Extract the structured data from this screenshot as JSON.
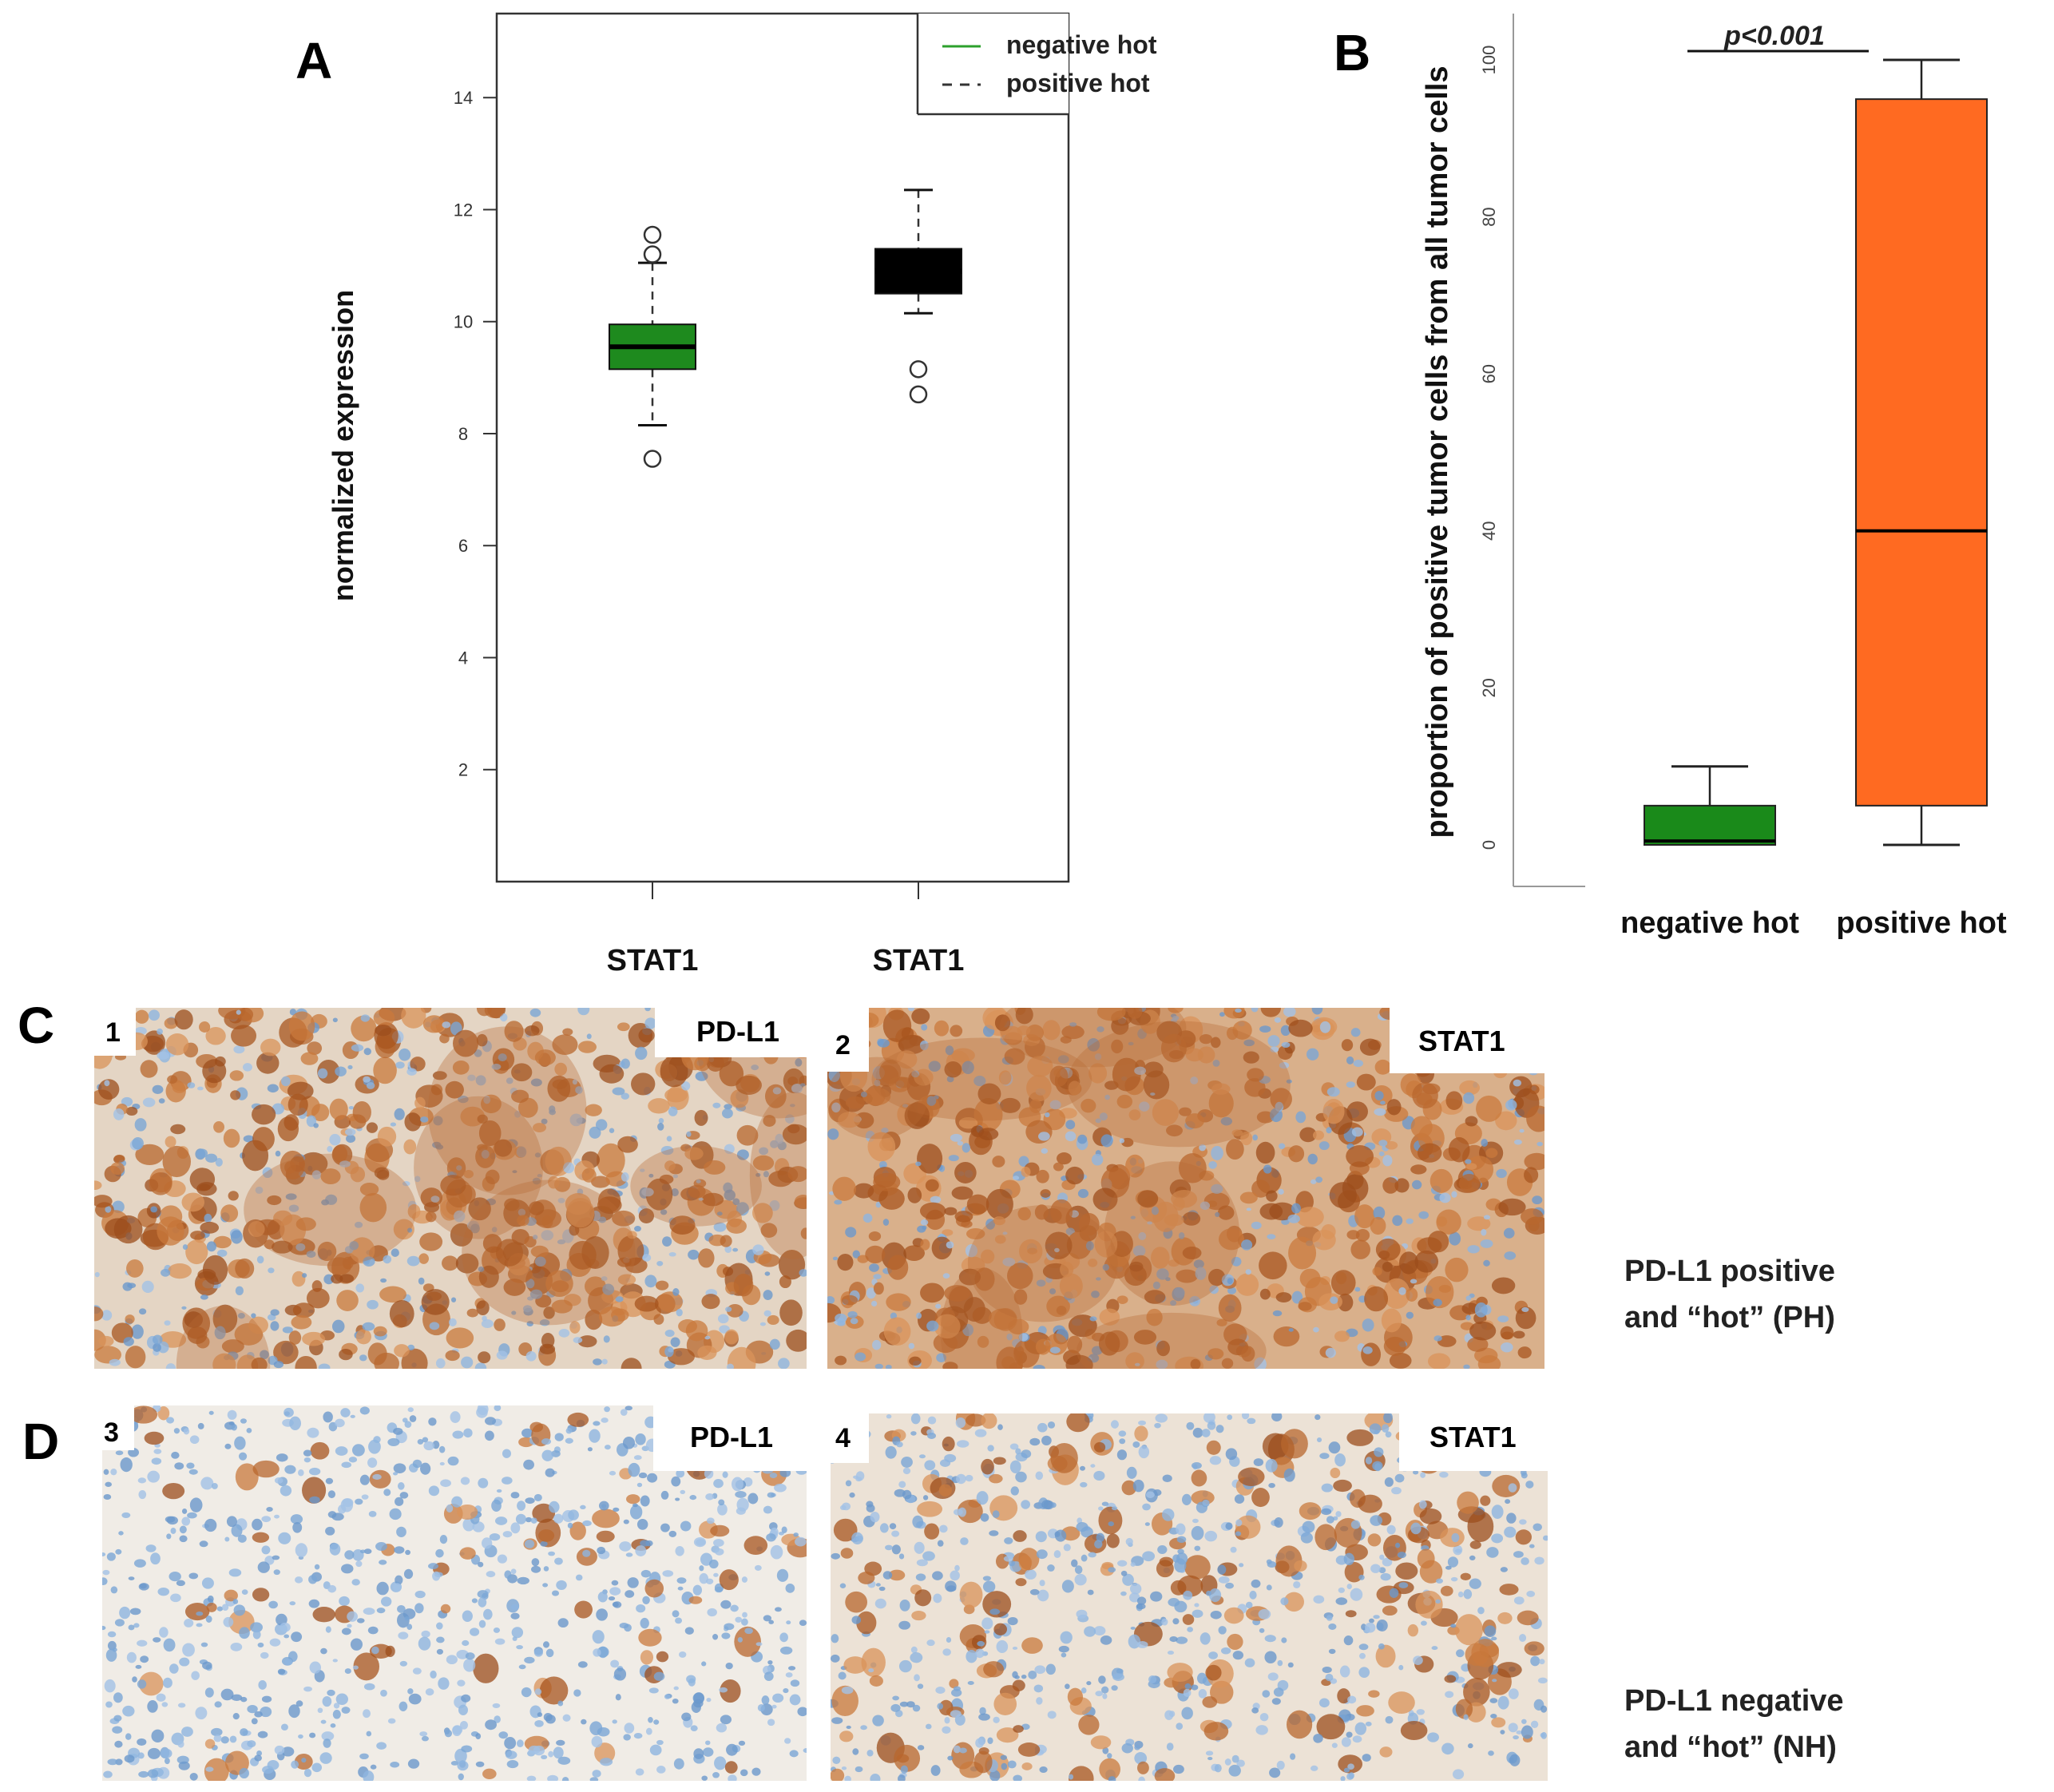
{
  "chart_data": [
    {
      "panel": "A",
      "type": "box",
      "ylabel": "normalized expression",
      "xlabel": "",
      "ylim": [
        0,
        15.5
      ],
      "yticks": [
        2,
        4,
        6,
        8,
        10,
        12,
        14
      ],
      "grid": false,
      "legend_position": "top-right",
      "legend": [
        {
          "label": "negative hot",
          "style": "solid",
          "color": "#2ca02c"
        },
        {
          "label": "positive hot",
          "style": "dashed",
          "color": "#333333"
        }
      ],
      "series": [
        {
          "name": "negative hot",
          "category": "STAT1",
          "color": "#1e8a1e",
          "whisker_low": 8.15,
          "q1": 9.15,
          "median": 9.55,
          "q3": 9.95,
          "whisker_high": 11.05,
          "outliers": [
            7.55,
            11.2,
            11.55
          ]
        },
        {
          "name": "positive hot",
          "category": "STAT1",
          "color": "#000000",
          "whisker_low": 10.15,
          "q1": 10.5,
          "median": 10.9,
          "q3": 11.3,
          "whisker_high": 12.35,
          "outliers": [
            8.7,
            9.15
          ]
        }
      ]
    },
    {
      "panel": "B",
      "type": "box",
      "ylabel": "proportion  of positive tumor cells from all tumor cells",
      "xlabel": "",
      "ylim": [
        -5,
        105
      ],
      "yticks": [
        0,
        20,
        40,
        60,
        80,
        100
      ],
      "grid": false,
      "annotation": "p<0.001",
      "series": [
        {
          "name": "negative hot",
          "category": "negative hot",
          "color": "#1a8a1a",
          "whisker_low": 0,
          "q1": 0,
          "median": 0.5,
          "q3": 5,
          "whisker_high": 10
        },
        {
          "name": "positive hot",
          "category": "positive hot",
          "color": "#ff6a21",
          "whisker_low": 0,
          "q1": 5,
          "median": 40,
          "q3": 95,
          "whisker_high": 100
        }
      ]
    }
  ],
  "panels": {
    "a_label": "A",
    "b_label": "B",
    "c_label": "C",
    "d_label": "D"
  },
  "images": [
    {
      "number": "1",
      "stain": "PD-L1",
      "tone": "strong"
    },
    {
      "number": "2",
      "stain": "STAT1",
      "tone": "strong"
    },
    {
      "number": "3",
      "stain": "PD-L1",
      "tone": "weak"
    },
    {
      "number": "4",
      "stain": "STAT1",
      "tone": "medium"
    }
  ],
  "captions": {
    "ph_line1": "PD-L1 positive",
    "ph_line2": "and “hot” (PH)",
    "nh_line1": "PD-L1 negative",
    "nh_line2": "and “hot” (NH)"
  }
}
